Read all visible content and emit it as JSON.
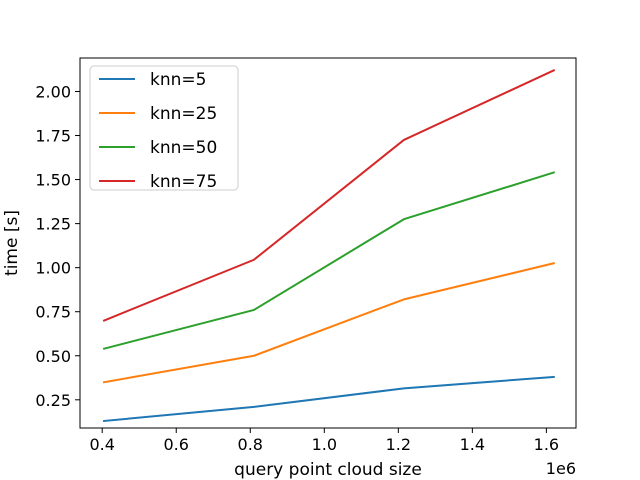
{
  "chart_data": {
    "type": "line",
    "xlabel": "query point cloud size",
    "ylabel": "time [s]",
    "x_offset_label": "1e6",
    "x": [
      0.405,
      0.81,
      1.215,
      1.62
    ],
    "xlim": [
      0.34,
      1.68
    ],
    "ylim": [
      0.09,
      2.19
    ],
    "xticks": [
      0.4,
      0.6,
      0.8,
      1.0,
      1.2,
      1.4,
      1.6
    ],
    "xtick_labels": [
      "0.4",
      "0.6",
      "0.8",
      "1.0",
      "1.2",
      "1.4",
      "1.6"
    ],
    "yticks": [
      0.25,
      0.5,
      0.75,
      1.0,
      1.25,
      1.5,
      1.75,
      2.0
    ],
    "ytick_labels": [
      "0.25",
      "0.50",
      "0.75",
      "1.00",
      "1.25",
      "1.50",
      "1.75",
      "2.00"
    ],
    "legend_position": "top-left",
    "grid": false,
    "series": [
      {
        "name": "knn=5",
        "color": "#1f77b4",
        "values": [
          0.13,
          0.21,
          0.315,
          0.38
        ]
      },
      {
        "name": "knn=25",
        "color": "#ff7f0e",
        "values": [
          0.35,
          0.5,
          0.82,
          1.025
        ]
      },
      {
        "name": "knn=50",
        "color": "#2ca02c",
        "values": [
          0.54,
          0.76,
          1.275,
          1.54
        ]
      },
      {
        "name": "knn=75",
        "color": "#d62728",
        "values": [
          0.7,
          1.045,
          1.725,
          2.12
        ]
      }
    ]
  }
}
